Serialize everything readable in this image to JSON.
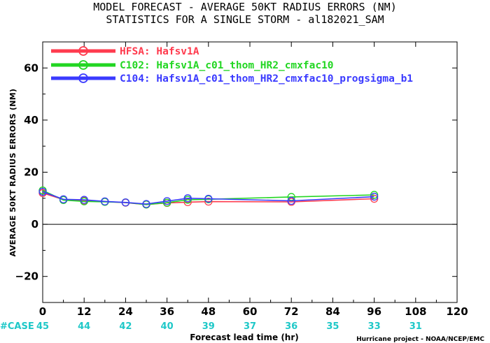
{
  "title_line1": "MODEL FORECAST - AVERAGE 50KT RADIUS ERRORS (NM)",
  "title_line2": "STATISTICS FOR A SINGLE STORM - al182021_SAM",
  "credit": "Hurricane project - NOAA/NCEP/EMC",
  "case_label": "#CASE",
  "case_counts": [
    {
      "x": 0,
      "label": "45"
    },
    {
      "x": 12,
      "label": "44"
    },
    {
      "x": 24,
      "label": "42"
    },
    {
      "x": 36,
      "label": "40"
    },
    {
      "x": 48,
      "label": "39"
    },
    {
      "x": 60,
      "label": "37"
    },
    {
      "x": 72,
      "label": "36"
    },
    {
      "x": 84,
      "label": "35"
    },
    {
      "x": 96,
      "label": "33"
    },
    {
      "x": 108,
      "label": "31"
    }
  ],
  "chart_data": {
    "type": "line",
    "xlabel": "Forecast lead time (hr)",
    "ylabel": "AVERAGE 50KT RADIUS ERRORS (NM)",
    "xlim": [
      0,
      120
    ],
    "ylim": [
      -30,
      70
    ],
    "xticks": [
      0,
      12,
      24,
      36,
      48,
      60,
      72,
      84,
      96,
      108,
      120
    ],
    "yticks": [
      -20,
      0,
      20,
      40,
      60
    ],
    "grid": false,
    "zero_line": true,
    "legend_position": "top-left",
    "series": [
      {
        "name": "HFSA: Hafsv1A",
        "color": "#ff3b4e",
        "x": [
          0,
          6,
          12,
          18,
          24,
          30,
          36,
          42,
          48,
          72,
          96
        ],
        "y": [
          12,
          9.5,
          9,
          8.7,
          8.3,
          7.6,
          8.2,
          8.5,
          8.7,
          8.6,
          9.8
        ]
      },
      {
        "name": "C102: Hafsv1A_c01_thom_HR2_cmxfac10",
        "color": "#22d622",
        "x": [
          0,
          6,
          12,
          18,
          24,
          30,
          36,
          42,
          48,
          72,
          96
        ],
        "y": [
          13,
          9.3,
          8.8,
          8.6,
          8.4,
          7.6,
          8.3,
          9.4,
          9.6,
          10.5,
          11.3
        ]
      },
      {
        "name": "C104: Hafsv1A_c01_thom_HR2_cmxfac10_progsigma_b1",
        "color": "#3a3aff",
        "x": [
          0,
          6,
          12,
          18,
          24,
          30,
          36,
          42,
          48,
          72,
          96
        ],
        "y": [
          12.5,
          9.6,
          9.4,
          8.8,
          8.4,
          7.8,
          8.9,
          10,
          9.8,
          9,
          10.6
        ]
      }
    ]
  }
}
